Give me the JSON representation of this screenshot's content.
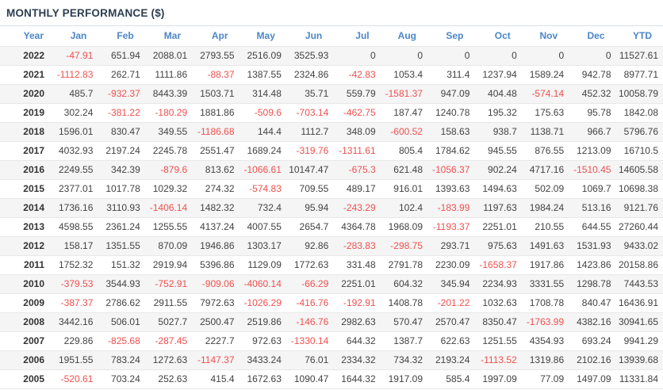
{
  "title": "MONTHLY PERFORMANCE ($)",
  "colors": {
    "title_text": "#2c3e50",
    "header_text": "#4c86c8",
    "positive_value": "#424242",
    "negative_value": "#f0504e",
    "stripe_row_bg": "#f5f5f5",
    "row_border": "#e8e8e8",
    "title_border": "#d9dee3"
  },
  "chart_data": {
    "type": "table",
    "title": "MONTHLY PERFORMANCE ($)",
    "columns": [
      "Year",
      "Jan",
      "Feb",
      "Mar",
      "Apr",
      "May",
      "Jun",
      "Jul",
      "Aug",
      "Sep",
      "Oct",
      "Nov",
      "Dec",
      "YTD"
    ],
    "rows": [
      {
        "year": "2022",
        "values": [
          "-47.91",
          "651.94",
          "2088.01",
          "2793.55",
          "2516.09",
          "3525.93",
          "0",
          "0",
          "0",
          "0",
          "0",
          "0",
          "11527.61"
        ]
      },
      {
        "year": "2021",
        "values": [
          "-1112.83",
          "262.71",
          "1111.86",
          "-88.37",
          "1387.55",
          "2324.86",
          "-42.83",
          "1053.4",
          "311.4",
          "1237.94",
          "1589.24",
          "942.78",
          "8977.71"
        ]
      },
      {
        "year": "2020",
        "values": [
          "485.7",
          "-932.37",
          "8443.39",
          "1503.71",
          "314.48",
          "35.71",
          "559.79",
          "-1581.37",
          "947.09",
          "404.48",
          "-574.14",
          "452.32",
          "10058.79"
        ]
      },
      {
        "year": "2019",
        "values": [
          "302.24",
          "-381.22",
          "-180.29",
          "1881.86",
          "-509.6",
          "-703.14",
          "-462.75",
          "187.47",
          "1240.78",
          "195.32",
          "175.63",
          "95.78",
          "1842.08"
        ]
      },
      {
        "year": "2018",
        "values": [
          "1596.01",
          "830.47",
          "349.55",
          "-1186.68",
          "144.4",
          "1112.7",
          "348.09",
          "-600.52",
          "158.63",
          "938.7",
          "1138.71",
          "966.7",
          "5796.76"
        ]
      },
      {
        "year": "2017",
        "values": [
          "4032.93",
          "2197.24",
          "2245.78",
          "2551.47",
          "1689.24",
          "-319.76",
          "-1311.61",
          "805.4",
          "1784.62",
          "945.55",
          "876.55",
          "1213.09",
          "16710.5"
        ]
      },
      {
        "year": "2016",
        "values": [
          "2249.55",
          "342.39",
          "-879.6",
          "813.62",
          "-1066.61",
          "10147.47",
          "-675.3",
          "621.48",
          "-1056.37",
          "902.24",
          "4717.16",
          "-1510.45",
          "14605.58"
        ]
      },
      {
        "year": "2015",
        "values": [
          "2377.01",
          "1017.78",
          "1029.32",
          "274.32",
          "-574.83",
          "709.55",
          "489.17",
          "916.01",
          "1393.63",
          "1494.63",
          "502.09",
          "1069.7",
          "10698.38"
        ]
      },
      {
        "year": "2014",
        "values": [
          "1736.16",
          "3110.93",
          "-1406.14",
          "1482.32",
          "732.4",
          "95.94",
          "-243.29",
          "102.4",
          "-183.99",
          "1197.63",
          "1984.24",
          "513.16",
          "9121.76"
        ]
      },
      {
        "year": "2013",
        "values": [
          "4598.55",
          "2361.24",
          "1255.55",
          "4137.24",
          "4007.55",
          "2654.7",
          "4364.78",
          "1968.09",
          "-1193.37",
          "2251.01",
          "210.55",
          "644.55",
          "27260.44"
        ]
      },
      {
        "year": "2012",
        "values": [
          "158.17",
          "1351.55",
          "870.09",
          "1946.86",
          "1303.17",
          "92.86",
          "-283.83",
          "-298.75",
          "293.71",
          "975.63",
          "1491.63",
          "1531.93",
          "9433.02"
        ]
      },
      {
        "year": "2011",
        "values": [
          "1752.32",
          "151.32",
          "2919.94",
          "5396.86",
          "1129.09",
          "1772.63",
          "331.48",
          "2791.78",
          "2230.09",
          "-1658.37",
          "1917.86",
          "1423.86",
          "20158.86"
        ]
      },
      {
        "year": "2010",
        "values": [
          "-379.53",
          "3544.93",
          "-752.91",
          "-909.06",
          "-4060.14",
          "-66.29",
          "2251.01",
          "604.32",
          "345.94",
          "2234.93",
          "3331.55",
          "1298.78",
          "7443.53"
        ]
      },
      {
        "year": "2009",
        "values": [
          "-387.37",
          "2786.62",
          "2911.55",
          "7972.63",
          "-1026.29",
          "-416.76",
          "-192.91",
          "1408.78",
          "-201.22",
          "1032.63",
          "1708.78",
          "840.47",
          "16436.91"
        ]
      },
      {
        "year": "2008",
        "values": [
          "3442.16",
          "506.01",
          "5027.7",
          "2500.47",
          "2519.86",
          "-146.76",
          "2982.63",
          "570.47",
          "2570.47",
          "8350.47",
          "-1763.99",
          "4382.16",
          "30941.65"
        ]
      },
      {
        "year": "2007",
        "values": [
          "229.86",
          "-825.68",
          "-287.45",
          "2227.7",
          "972.63",
          "-1330.14",
          "644.32",
          "1387.7",
          "622.63",
          "1251.55",
          "4354.93",
          "693.24",
          "9941.29"
        ]
      },
      {
        "year": "2006",
        "values": [
          "1951.55",
          "783.24",
          "1272.63",
          "-1147.37",
          "3433.24",
          "76.01",
          "2334.32",
          "734.32",
          "2193.24",
          "-1113.52",
          "1319.86",
          "2102.16",
          "13939.68"
        ]
      },
      {
        "year": "2005",
        "values": [
          "-520.61",
          "703.24",
          "252.63",
          "415.4",
          "1672.63",
          "1090.47",
          "1644.32",
          "1917.09",
          "585.4",
          "1997.09",
          "77.09",
          "1497.09",
          "11331.84"
        ]
      }
    ]
  }
}
